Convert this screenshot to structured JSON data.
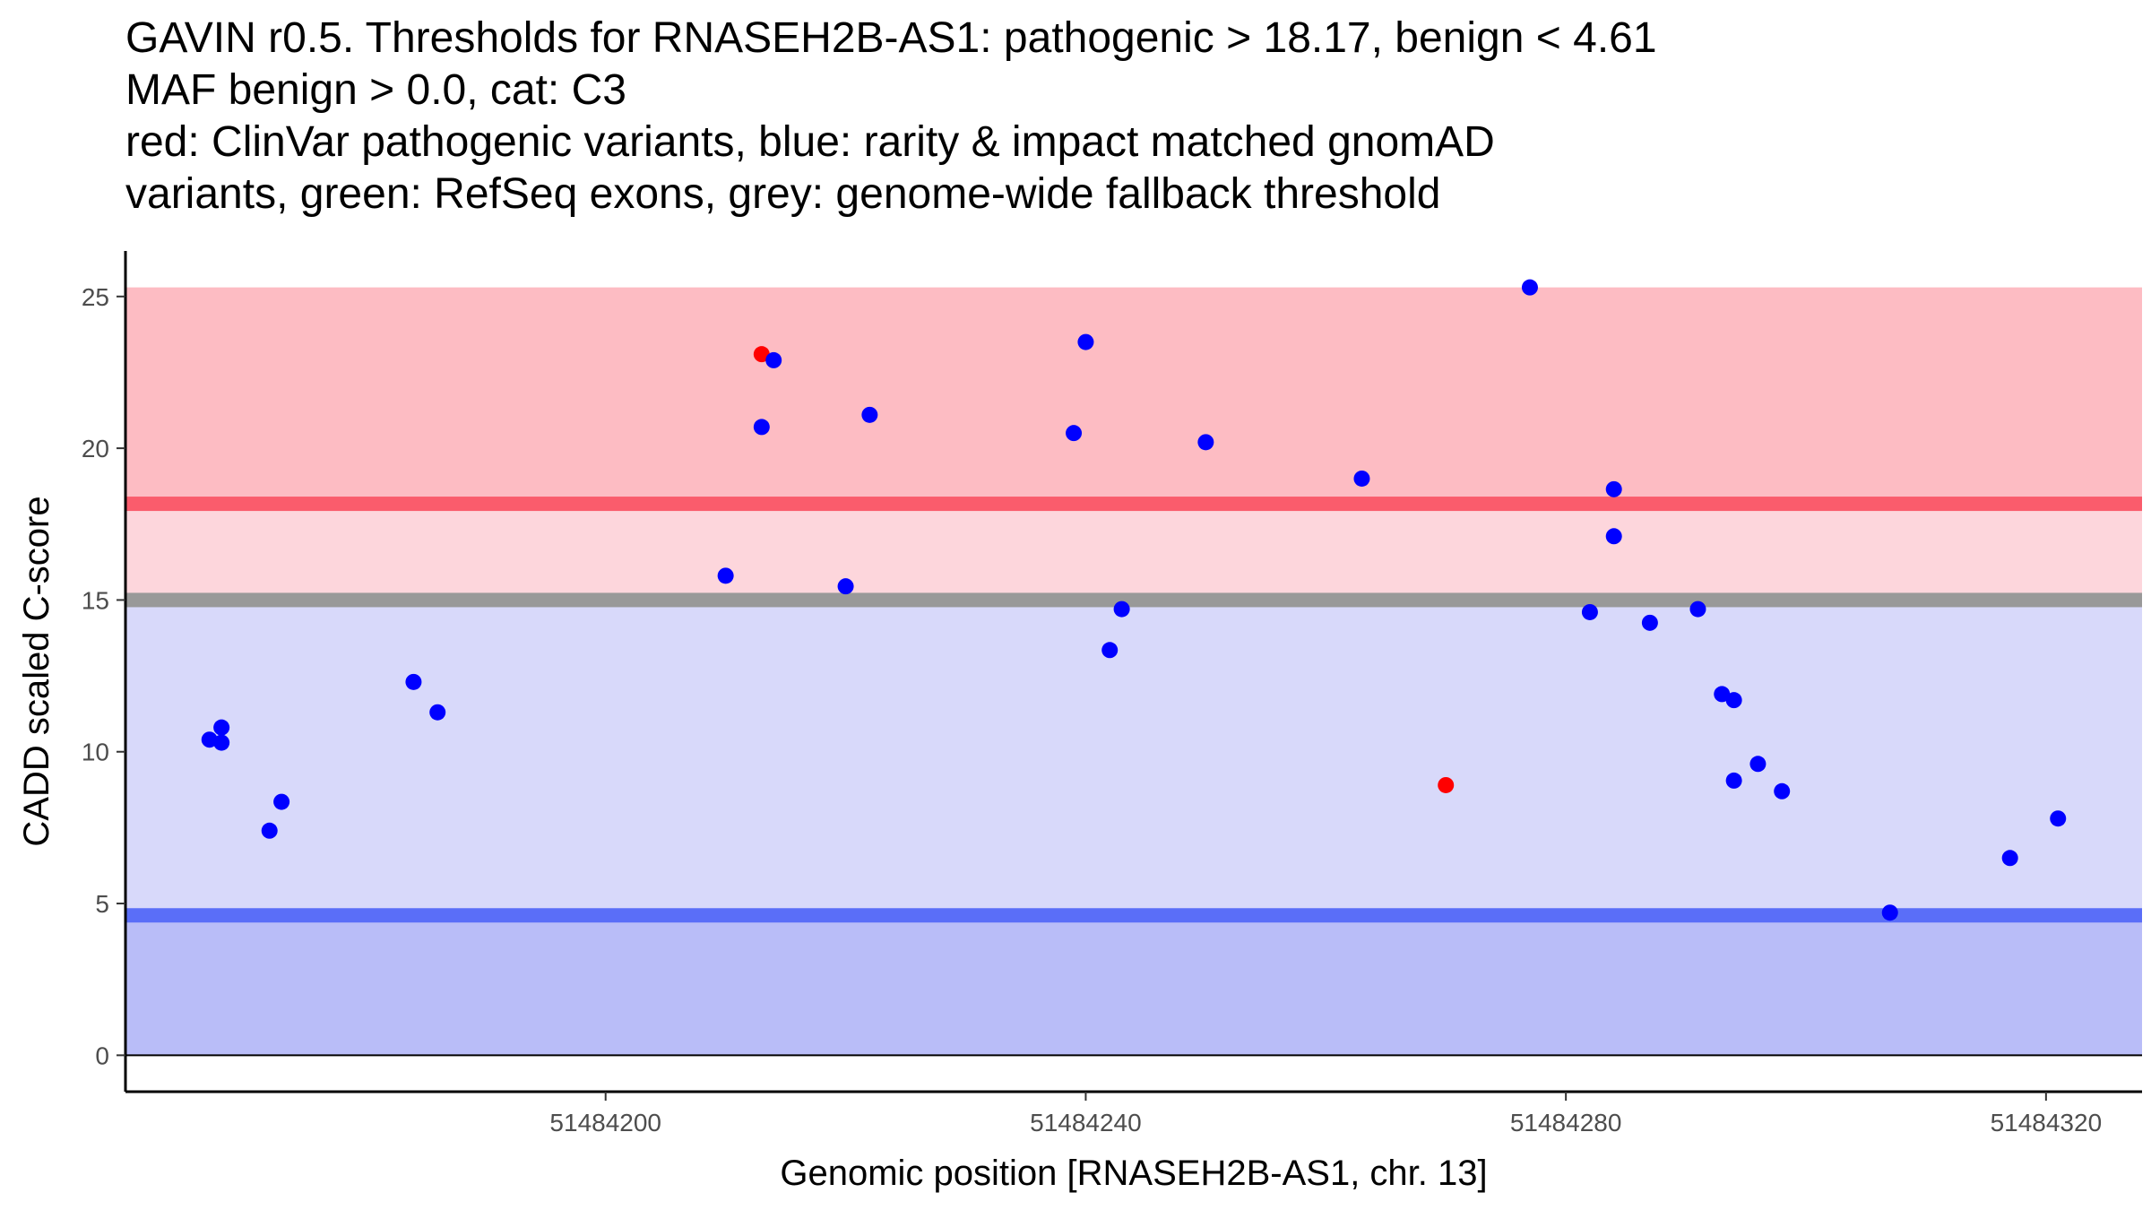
{
  "chart_data": {
    "type": "scatter",
    "title_lines": [
      "GAVIN r0.5. Thresholds for RNASEH2B-AS1: pathogenic > 18.17, benign < 4.61",
      "MAF benign > 0.0, cat: C3",
      "red: ClinVar pathogenic variants, blue: rarity & impact matched gnomAD",
      "variants, green: RefSeq exons, grey: genome-wide fallback threshold"
    ],
    "xlabel": "Genomic position [RNASEH2B-AS1, chr. 13]",
    "ylabel": "CADD scaled C-score",
    "xlim": [
      51484160,
      51484328
    ],
    "ylim": [
      -1.2,
      26.5
    ],
    "x_ticks": [
      51484200,
      51484240,
      51484280,
      51484320
    ],
    "x_tick_labels": [
      "51484200",
      "51484240",
      "51484280",
      "51484320"
    ],
    "y_ticks": [
      0,
      5,
      10,
      15,
      20,
      25
    ],
    "y_tick_labels": [
      "0",
      "5",
      "10",
      "15",
      "20",
      "25"
    ],
    "thresholds": {
      "pathogenic": 18.17,
      "benign": 4.61,
      "fallback": 15.0,
      "band_top": 25.3,
      "band_bottom": 0
    },
    "colors": {
      "pathogenic_zone": "#fdbcc3",
      "intermediate_zone": "#fdd6dc",
      "benign_zone": "#d8d9fa",
      "low_zone": "#b9bdf8",
      "pathogenic_line": "#fa5c6c",
      "benign_line": "#5a6ef8",
      "fallback_line": "#999999",
      "clinvar_point": "#ff0000",
      "gnomad_point": "#0000ff"
    },
    "series": [
      {
        "name": "ClinVar pathogenic",
        "color": "#ff0000",
        "points": [
          [
            51484213,
            23.1
          ],
          [
            51484270,
            8.9
          ]
        ]
      },
      {
        "name": "gnomAD matched",
        "color": "#0000ff",
        "points": [
          [
            51484167,
            10.4
          ],
          [
            51484168,
            10.3
          ],
          [
            51484168,
            10.8
          ],
          [
            51484172,
            7.4
          ],
          [
            51484173,
            8.35
          ],
          [
            51484184,
            12.3
          ],
          [
            51484186,
            11.3
          ],
          [
            51484210,
            15.8
          ],
          [
            51484213,
            20.7
          ],
          [
            51484214,
            22.9
          ],
          [
            51484220,
            15.45
          ],
          [
            51484222,
            21.1
          ],
          [
            51484239,
            20.5
          ],
          [
            51484240,
            23.5
          ],
          [
            51484242,
            13.35
          ],
          [
            51484243,
            14.7
          ],
          [
            51484250,
            20.2
          ],
          [
            51484263,
            19.0
          ],
          [
            51484277,
            25.3
          ],
          [
            51484282,
            14.6
          ],
          [
            51484284,
            18.65
          ],
          [
            51484284,
            17.1
          ],
          [
            51484287,
            14.25
          ],
          [
            51484291,
            14.7
          ],
          [
            51484293,
            11.9
          ],
          [
            51484294,
            11.7
          ],
          [
            51484294,
            9.05
          ],
          [
            51484296,
            9.6
          ],
          [
            51484298,
            8.7
          ],
          [
            51484307,
            4.7
          ],
          [
            51484317,
            6.5
          ],
          [
            51484321,
            7.8
          ]
        ]
      }
    ]
  }
}
